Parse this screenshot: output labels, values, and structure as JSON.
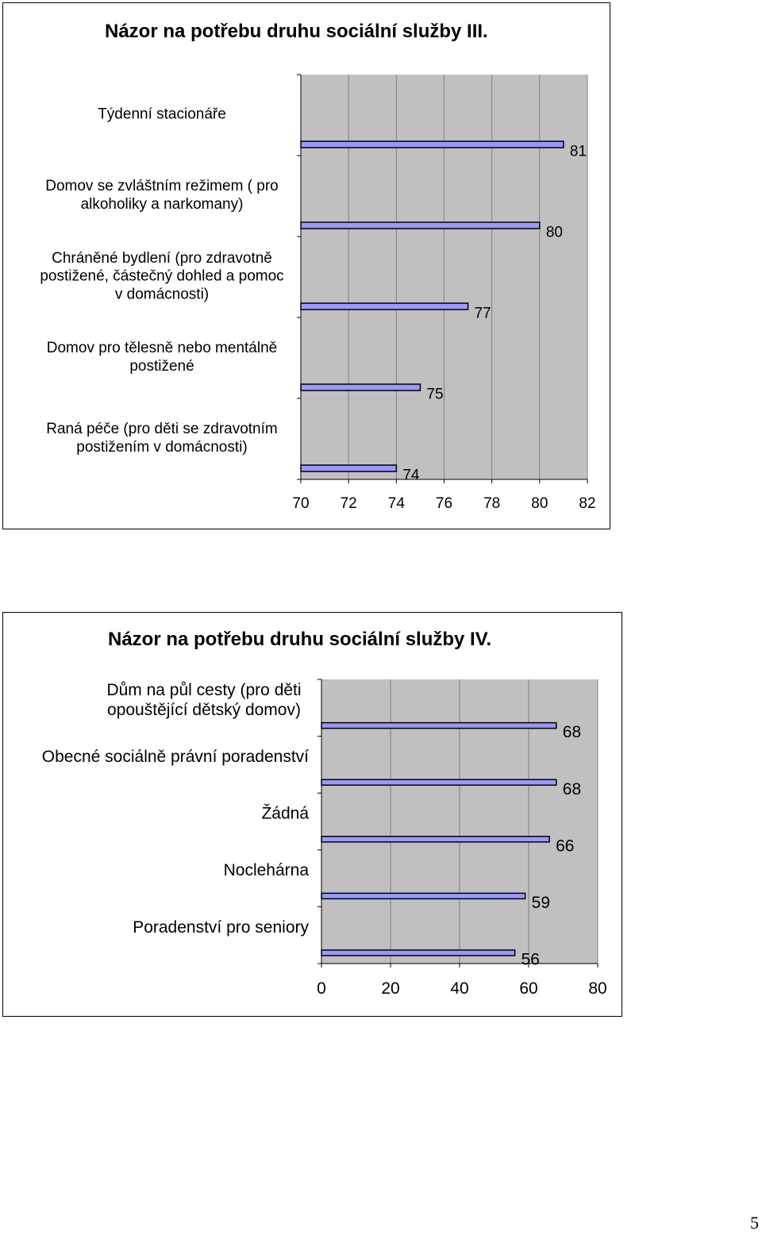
{
  "page_number": "5",
  "chart_data": [
    {
      "type": "bar",
      "orientation": "horizontal",
      "title": "Názor na potřebu druhu sociální služby III.",
      "categories": [
        "Týdenní stacionáře",
        "Domov se zvláštním režimem ( pro alkoholiky a narkomany)",
        "Chráněné bydlení (pro zdravotně postižené, částečný dohled a pomoc v domácnosti)",
        "Domov pro tělesně nebo mentálně postižené",
        "Raná péče (pro děti se zdravotním postižením v domácnosti)"
      ],
      "category_lines": [
        [
          "Týdenní stacionáře"
        ],
        [
          "Domov se zvláštním režimem ( pro",
          "alkoholiky a narkomany)"
        ],
        [
          "Chráněné bydlení (pro zdravotně",
          "postižené, částečný dohled a pomoc",
          "v domácnosti)"
        ],
        [
          "Domov pro tělesně nebo mentálně",
          "postižené"
        ],
        [
          "Raná péče (pro děti se zdravotním",
          "postižením v domácnosti)"
        ]
      ],
      "values": [
        81,
        80,
        77,
        75,
        74
      ],
      "xlim": [
        70,
        82
      ],
      "ticks": [
        "70",
        "72",
        "74",
        "76",
        "78",
        "80",
        "82"
      ],
      "grid": "vertical",
      "colors": {
        "bar_fill": "#9999ff",
        "plot_bg": "#c0c0c0",
        "grid": "#808080"
      }
    },
    {
      "type": "bar",
      "orientation": "horizontal",
      "title": "Názor na potřebu druhu sociální služby IV.",
      "categories": [
        "Dům na půl cesty (pro děti opouštějící dětský domov)",
        "Obecné sociálně právní poradenství",
        "Žádná",
        "Noclehárna",
        "Poradenství pro seniory"
      ],
      "category_lines": [
        [
          "Dům na půl cesty (pro děti",
          "opouštějící dětský domov)"
        ],
        [
          "Obecné sociálně právní poradenství"
        ],
        [
          "Žádná"
        ],
        [
          "Noclehárna"
        ],
        [
          "Poradenství pro seniory"
        ]
      ],
      "values": [
        68,
        68,
        66,
        59,
        56
      ],
      "xlim": [
        0,
        80
      ],
      "ticks": [
        "0",
        "20",
        "40",
        "60",
        "80"
      ],
      "grid": "vertical",
      "colors": {
        "bar_fill": "#9999ff",
        "plot_bg": "#c0c0c0",
        "grid": "#808080"
      }
    }
  ]
}
